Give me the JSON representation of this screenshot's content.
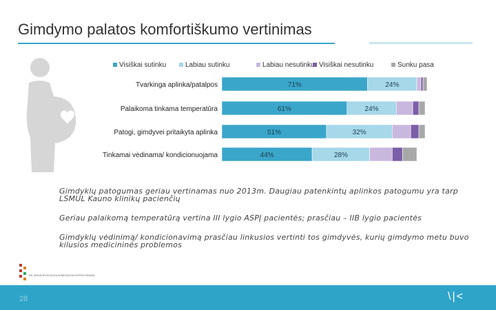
{
  "page": {
    "title": "Gimdymo palatos komfortiškumo vertinimas",
    "page_number": "28",
    "footer_mark": "\\|<",
    "logo_text": "DE MINIS/ŠVIEZAISIUS/MEDICINOS/PROGRAMA"
  },
  "notes": [
    "Gimdyklų patogumas geriau vertinamas nuo 2013m. Daugiau patenkintų aplinkos patogumu yra tarp LSMUL Kauno klinikų pacienčių",
    "Geriau palaikomą temperatūrą vertina III lygio ASPĮ pacientės; prasčiau – IIB lygio pacientės",
    "Gimdyklų vėdinimą/ kondicionavimą prasčiau linkusios vertinti tos gimdyvės, kurių gimdymo metu buvo kilusios medicininės problemos"
  ],
  "chart_data": {
    "type": "bar",
    "orientation": "horizontal",
    "stacked": true,
    "categories": [
      "Tvarkinga aplinka/patalpos",
      "Palaikoma tinkama temperatūra",
      "Patogi, gimdyvei pritaikyta aplinka",
      "Tinkamai vėdinama/ kondicionuojama"
    ],
    "series": [
      {
        "name": "Visiškai sutinku",
        "color": "#3aa6c9",
        "values": [
          71,
          61,
          51,
          44
        ],
        "labels": [
          "71%",
          "61%",
          "51%",
          "44%"
        ]
      },
      {
        "name": "Labiau sutinku",
        "color": "#a6d8ea",
        "values": [
          24,
          24,
          32,
          28
        ],
        "labels": [
          "24%",
          "24%",
          "32%",
          "28%"
        ]
      },
      {
        "name": "Labiau nesutinku",
        "color": "#c9b8de",
        "values": [
          2,
          8,
          9,
          11
        ],
        "labels": [
          "",
          "",
          "",
          ""
        ]
      },
      {
        "name": "Visiškai nesutinku",
        "color": "#7b5ea7",
        "values": [
          1,
          3,
          4,
          5
        ],
        "labels": [
          "",
          "",
          "",
          ""
        ]
      },
      {
        "name": "Sunku pasakyti",
        "color": "#a8a8a8",
        "values": [
          2,
          3,
          3,
          7
        ],
        "labels": [
          "",
          "",
          "",
          ""
        ]
      }
    ],
    "xlim": [
      0,
      100
    ],
    "legend": "top",
    "grid": false
  }
}
